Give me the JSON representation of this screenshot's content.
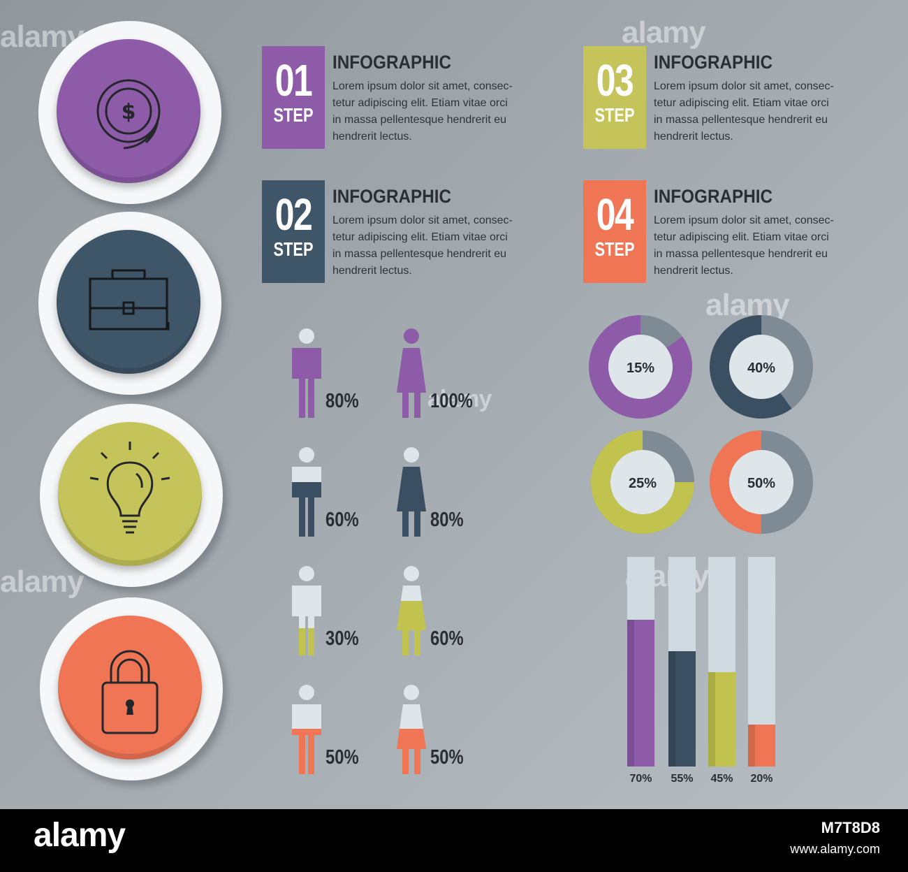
{
  "colors": {
    "purple": "#8d5ba8",
    "navy": "#3a4f61",
    "olive": "#c1c34e",
    "coral": "#f07555",
    "figure_light": "#dfe6ea",
    "donut_grey": "#7e8a94",
    "bar_bg": "#cfdbe1"
  },
  "icon_circles": [
    {
      "icon": "dollar-coin-icon",
      "color": "#8d5ba8"
    },
    {
      "icon": "briefcase-icon",
      "color": "#3f5568"
    },
    {
      "icon": "lightbulb-icon",
      "color": "#c5c45a"
    },
    {
      "icon": "padlock-icon",
      "color": "#f07555"
    }
  ],
  "steps": [
    {
      "num": "01",
      "word": "STEP",
      "title": "INFOGRAPHIC",
      "color": "#8d5ba8",
      "lines": [
        "Lorem ipsum dolor sit amet, consec-",
        "tetur adipiscing elit. Etiam vitae orci",
        "in massa pellentesque hendrerit eu",
        "hendrerit lectus."
      ]
    },
    {
      "num": "02",
      "word": "STEP",
      "title": "INFOGRAPHIC",
      "color": "#3f5568",
      "lines": [
        "Lorem ipsum dolor sit amet, consec-",
        "tetur adipiscing elit. Etiam vitae orci",
        "in massa pellentesque hendrerit eu",
        "hendrerit lectus."
      ]
    },
    {
      "num": "03",
      "word": "STEP",
      "title": "INFOGRAPHIC",
      "color": "#c5c45a",
      "lines": [
        "Lorem ipsum dolor sit amet, consec-",
        "tetur adipiscing elit. Etiam vitae orci",
        "in massa pellentesque hendrerit eu",
        "hendrerit lectus."
      ]
    },
    {
      "num": "04",
      "word": "STEP",
      "title": "INFOGRAPHIC",
      "color": "#f07555",
      "lines": [
        "Lorem ipsum dolor sit amet, consec-",
        "tetur adipiscing elit. Etiam vitae orci",
        "in massa pellentesque hendrerit eu",
        "hendrerit lectus."
      ]
    }
  ],
  "chart_data": [
    {
      "type": "pictograph",
      "figures": [
        {
          "gender": "male",
          "value": 80,
          "label": "80%",
          "color": "#8d5ba8"
        },
        {
          "gender": "female",
          "value": 100,
          "label": "100%",
          "color": "#8d5ba8"
        },
        {
          "gender": "male",
          "value": 60,
          "label": "60%",
          "color": "#3a4f61"
        },
        {
          "gender": "female",
          "value": 80,
          "label": "80%",
          "color": "#3a4f61"
        },
        {
          "gender": "male",
          "value": 30,
          "label": "30%",
          "color": "#c1c34e"
        },
        {
          "gender": "female",
          "value": 60,
          "label": "60%",
          "color": "#c1c34e"
        },
        {
          "gender": "male",
          "value": 50,
          "label": "50%",
          "color": "#f07555"
        },
        {
          "gender": "female",
          "value": 50,
          "label": "50%",
          "color": "#f07555"
        }
      ]
    },
    {
      "type": "pie",
      "style": "donut",
      "slices": [
        {
          "label": "15%",
          "color": "#8d5ba8",
          "fill_fraction": 0.85
        },
        {
          "label": "40%",
          "color": "#3a4f61",
          "fill_fraction": 0.6
        },
        {
          "label": "25%",
          "color": "#c1c34e",
          "fill_fraction": 0.75
        },
        {
          "label": "50%",
          "color": "#f07555",
          "fill_fraction": 0.5
        }
      ]
    },
    {
      "type": "bar",
      "categories": [
        "70%",
        "55%",
        "45%",
        "20%"
      ],
      "values": [
        70,
        55,
        45,
        20
      ],
      "colors": [
        "#8d5ba8",
        "#3a4f61",
        "#c1c34e",
        "#f07555"
      ],
      "ylim": [
        0,
        100
      ]
    }
  ],
  "watermark": "alamy",
  "footer": {
    "logo": "alamy",
    "image_id": "M7T8D8",
    "url": "www.alamy.com"
  }
}
